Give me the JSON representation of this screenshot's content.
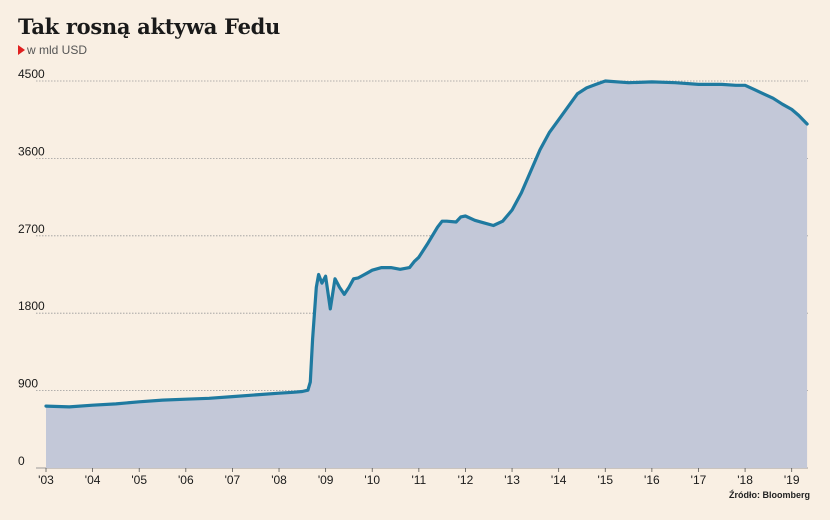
{
  "header": {
    "title": "Tak rosną aktywa Fedu",
    "subtitle": "w mld USD"
  },
  "source": "Źródło: Bloomberg",
  "colors": {
    "background": "#f9efe3",
    "line": "#1f7aa0",
    "fill": "#c3c8d8",
    "grid": "#9a9a9a",
    "marker": "#e02020"
  },
  "chart_data": {
    "type": "area",
    "title": "Tak rosną aktywa Fedu",
    "subtitle": "w mld USD",
    "xlabel": "",
    "ylabel": "",
    "ylim": [
      0,
      4500
    ],
    "xlim": [
      2003.0,
      2019.35
    ],
    "yticks": [
      0,
      900,
      1800,
      2700,
      3600,
      4500
    ],
    "ytick_labels": [
      "0",
      "900",
      "1800",
      "2700",
      "3600",
      "4500"
    ],
    "xticks": [
      2003,
      2004,
      2005,
      2006,
      2007,
      2008,
      2009,
      2010,
      2011,
      2012,
      2013,
      2014,
      2015,
      2016,
      2017,
      2018,
      2019
    ],
    "xtick_labels": [
      "'03",
      "'04",
      "'05",
      "'06",
      "'07",
      "'08",
      "'09",
      "'10",
      "'11",
      "'12",
      "'13",
      "'14",
      "'15",
      "'16",
      "'17",
      "'18",
      "'19"
    ],
    "grid": true,
    "legend": "none",
    "series": [
      {
        "x": [
          2003.0,
          2003.5,
          2004.0,
          2004.5,
          2005.0,
          2005.5,
          2006.0,
          2006.5,
          2007.0,
          2007.5,
          2008.0,
          2008.3,
          2008.5,
          2008.62,
          2008.67,
          2008.72,
          2008.8,
          2008.85,
          2008.92,
          2009.0,
          2009.1,
          2009.2,
          2009.3,
          2009.4,
          2009.5,
          2009.6,
          2009.7,
          2009.8,
          2009.9,
          2010.0,
          2010.2,
          2010.4,
          2010.6,
          2010.8,
          2010.9,
          2011.0,
          2011.2,
          2011.4,
          2011.5,
          2011.6,
          2011.8,
          2011.9,
          2012.0,
          2012.2,
          2012.4,
          2012.6,
          2012.8,
          2013.0,
          2013.2,
          2013.4,
          2013.6,
          2013.8,
          2014.0,
          2014.2,
          2014.4,
          2014.6,
          2014.8,
          2015.0,
          2015.5,
          2016.0,
          2016.5,
          2017.0,
          2017.5,
          2017.8,
          2018.0,
          2018.2,
          2018.4,
          2018.6,
          2018.8,
          2019.0,
          2019.15,
          2019.33
        ],
        "values": [
          720,
          710,
          730,
          745,
          770,
          790,
          800,
          810,
          830,
          850,
          870,
          880,
          890,
          905,
          1000,
          1500,
          2100,
          2250,
          2150,
          2230,
          1850,
          2200,
          2100,
          2020,
          2100,
          2200,
          2210,
          2240,
          2270,
          2300,
          2330,
          2330,
          2310,
          2330,
          2400,
          2450,
          2620,
          2800,
          2870,
          2870,
          2860,
          2920,
          2930,
          2880,
          2850,
          2820,
          2870,
          3000,
          3200,
          3450,
          3700,
          3900,
          4050,
          4200,
          4350,
          4420,
          4460,
          4500,
          4480,
          4490,
          4480,
          4460,
          4460,
          4450,
          4450,
          4400,
          4350,
          4300,
          4230,
          4170,
          4100,
          4000
        ]
      }
    ]
  }
}
